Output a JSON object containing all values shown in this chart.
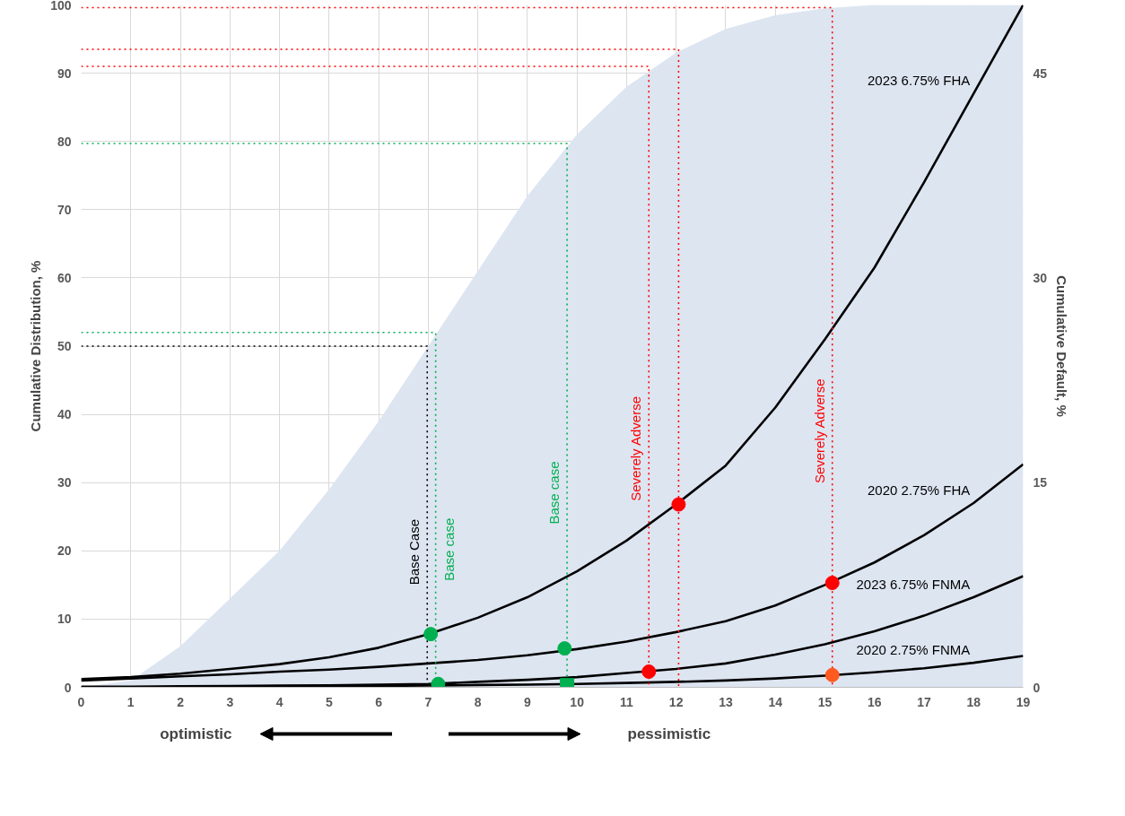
{
  "chart_data": {
    "type": "area",
    "xlabel": null,
    "ylabel": "Cumulative Distribution, %",
    "y2label": "Cumulative Default, %",
    "xlim": [
      0,
      19
    ],
    "xticks": [
      0,
      1,
      2,
      3,
      4,
      5,
      6,
      7,
      8,
      9,
      10,
      11,
      12,
      13,
      14,
      15,
      16,
      17,
      18,
      19
    ],
    "ylim": [
      0,
      100
    ],
    "yticks": [
      0,
      10,
      20,
      30,
      40,
      50,
      60,
      70,
      80,
      90,
      100
    ],
    "y2lim": [
      0,
      50
    ],
    "y2ticks": [
      0,
      15,
      30,
      45
    ],
    "grid": true,
    "annotations": [
      "optimistic",
      "pessimistic"
    ],
    "series": [
      {
        "color": "#dde5f1",
        "x": [
          0,
          1,
          2,
          3,
          4,
          5,
          6,
          7,
          8,
          9,
          10,
          11,
          12,
          13,
          14,
          15,
          16,
          17,
          18,
          19
        ],
        "values": [
          0,
          1,
          6,
          13,
          20,
          29,
          39,
          50,
          61,
          72,
          81,
          88,
          93,
          96.5,
          98.5,
          99.5,
          100,
          100,
          100,
          100
        ]
      },
      {
        "type": "line",
        "name": "2023 6.75% FHA",
        "color": "#000000",
        "axis": "y2",
        "x": [
          0,
          1,
          2,
          3,
          4,
          5,
          6,
          7,
          8,
          9,
          10,
          11,
          12,
          13,
          14,
          15,
          16,
          17,
          18,
          19
        ],
        "values": [
          0.6,
          0.75,
          1,
          1.35,
          1.7,
          2.2,
          2.9,
          3.9,
          5.1,
          6.6,
          8.5,
          10.75,
          13.4,
          16.25,
          20.5,
          25.5,
          30.75,
          37,
          43.5,
          50
        ]
      },
      {
        "type": "line",
        "name": "2020 2.75% FHA",
        "color": "#000000",
        "axis": "y2",
        "x": [
          0,
          1,
          2,
          3,
          4,
          5,
          6,
          7,
          8,
          9,
          10,
          11,
          12,
          13,
          14,
          15,
          16,
          17,
          18,
          19
        ],
        "values": [
          0.5,
          0.65,
          0.8,
          0.95,
          1.15,
          1.3,
          1.5,
          1.75,
          2,
          2.35,
          2.8,
          3.35,
          4.05,
          4.85,
          6,
          7.5,
          9.15,
          11.15,
          13.5,
          16.35
        ]
      },
      {
        "type": "line",
        "name": "2023 6.75% FNMA",
        "color": "#000000",
        "axis": "y2",
        "x": [
          0,
          1,
          2,
          3,
          4,
          5,
          6,
          7,
          8,
          9,
          10,
          11,
          12,
          13,
          14,
          15,
          16,
          17,
          18,
          19
        ],
        "values": [
          0.05,
          0.05,
          0.08,
          0.1,
          0.12,
          0.15,
          0.2,
          0.25,
          0.4,
          0.55,
          0.75,
          1.05,
          1.35,
          1.75,
          2.4,
          3.15,
          4.1,
          5.25,
          6.6,
          8.15
        ]
      },
      {
        "type": "line",
        "name": "2020 2.75% FNMA",
        "color": "#000000",
        "axis": "y2",
        "x": [
          0,
          1,
          2,
          3,
          4,
          5,
          6,
          7,
          8,
          9,
          10,
          11,
          12,
          13,
          14,
          15,
          16,
          17,
          18,
          19
        ],
        "values": [
          0,
          0,
          0,
          0.02,
          0.05,
          0.07,
          0.1,
          0.13,
          0.17,
          0.2,
          0.25,
          0.32,
          0.4,
          0.5,
          0.65,
          0.85,
          1.1,
          1.4,
          1.8,
          2.3
        ]
      },
      {
        "type": "line",
        "name": "Base Case",
        "line_style": "dotted",
        "color": "#000000",
        "x": [
          0,
          6.98,
          6.98
        ],
        "values": [
          50,
          50,
          0
        ]
      },
      {
        "type": "line",
        "name": "Base case",
        "line_style": "dotted",
        "color": "#00b050",
        "x": [
          0,
          7.15,
          7.15
        ],
        "values": [
          52,
          52,
          0
        ]
      },
      {
        "type": "line",
        "name": "Base case",
        "line_style": "dotted",
        "color": "#00b050",
        "x": [
          0,
          9.8,
          9.8
        ],
        "values": [
          79.7,
          79.7,
          0
        ]
      },
      {
        "type": "line",
        "name": "Severely Adverse",
        "line_style": "dotted",
        "color": "#ff0000",
        "x": [
          0,
          11.45,
          11.45
        ],
        "values": [
          91,
          91,
          0
        ]
      },
      {
        "type": "line",
        "line_style": "dotted",
        "color": "#ff0000",
        "x": [
          0,
          12.05,
          12.05
        ],
        "values": [
          93.5,
          93.5,
          0
        ]
      },
      {
        "type": "line",
        "name": "Severely Adverse",
        "line_style": "dotted",
        "color": "#ff0000",
        "x": [
          0,
          15.15,
          15.15
        ],
        "values": [
          99.6,
          99.6,
          0
        ]
      },
      {
        "type": "scatter",
        "marker": "circle",
        "x": [
          7.05,
          9.75,
          7.2,
          12.05,
          11.45,
          15.15,
          15.15
        ],
        "values": [
          7.8,
          5.7,
          0.5,
          26.8,
          2.3,
          15.3,
          1.8
        ],
        "colors": [
          "#00b050",
          "#00b050",
          "#00b050",
          "#ff0000",
          "#ff0000",
          "#ff0000",
          "#ff5a1f"
        ]
      },
      {
        "type": "scatter",
        "marker": "square",
        "x": [
          9.8
        ],
        "values": [
          0.3
        ],
        "colors": [
          "#00b050"
        ]
      }
    ]
  }
}
